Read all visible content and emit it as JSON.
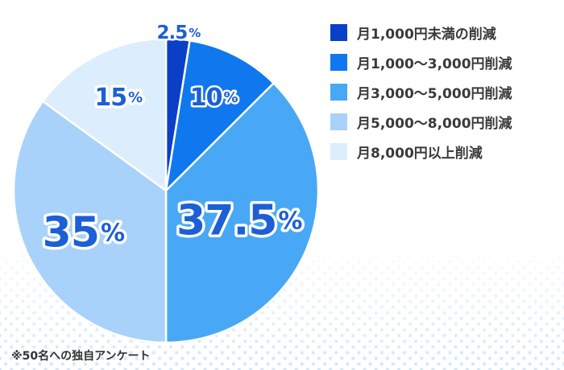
{
  "chart_data": {
    "type": "pie",
    "unit": "%",
    "categories": [
      "月1,000円未満の削減",
      "月1,000〜3,000円削減",
      "月3,000〜5,000円削減",
      "月5,000〜8,000円削減",
      "月8,000円以上削減"
    ],
    "values": [
      2.5,
      10,
      37.5,
      35,
      15
    ],
    "value_labels": [
      "2.5",
      "10",
      "37.5",
      "35",
      "15"
    ],
    "colors": [
      "#0a3fc8",
      "#0f78ee",
      "#48a8f5",
      "#a8d2fa",
      "#dcedfd"
    ],
    "label_text_color": "#1c5fd6",
    "legend_position": "right",
    "start": "12 o'clock, clockwise"
  },
  "footnote": "※50名への独自アンケート"
}
